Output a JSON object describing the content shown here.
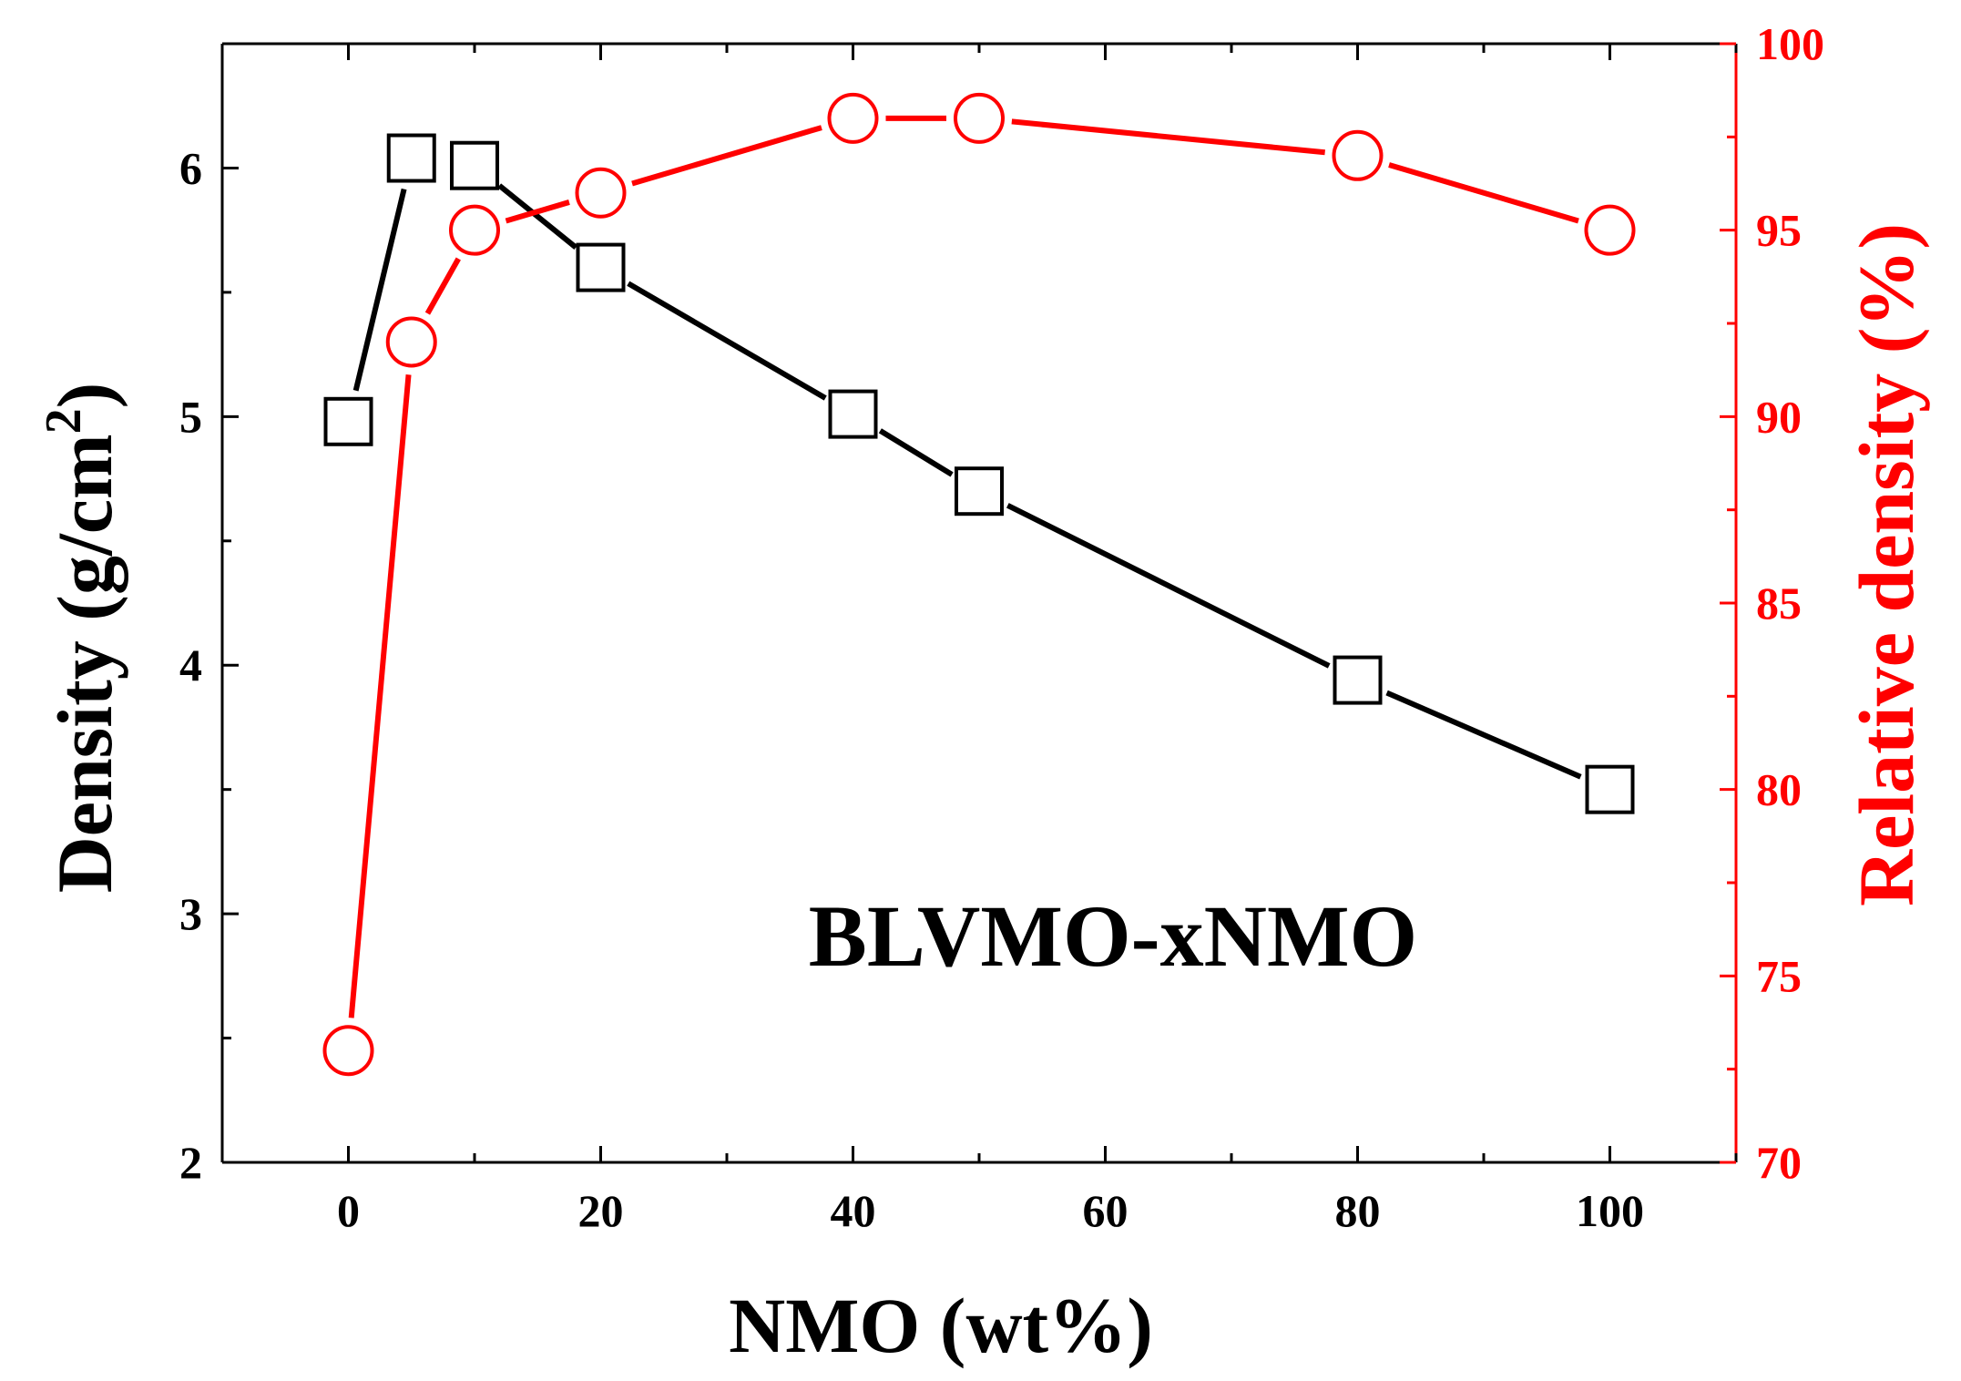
{
  "chart_data": {
    "type": "line",
    "annotation": "BLVMO-xNMO",
    "xlabel": "NMO (wt%)",
    "xlim": [
      -10,
      110
    ],
    "x_ticks": [
      0,
      20,
      40,
      60,
      80,
      100
    ],
    "x_tick_labels": [
      "0",
      "20",
      "40",
      "60",
      "80",
      "100"
    ],
    "y_left": {
      "label": "Density (g/cm",
      "label_sup": "2",
      "label_close": ")",
      "lim": [
        2,
        6.5
      ],
      "ticks": [
        2,
        3,
        4,
        5,
        6
      ],
      "tick_labels": [
        "2",
        "3",
        "4",
        "5",
        "6"
      ],
      "color": "#000000"
    },
    "y_right": {
      "label": "Relative density (%)",
      "lim": [
        70,
        100
      ],
      "ticks": [
        70,
        75,
        80,
        85,
        90,
        95,
        100
      ],
      "tick_labels": [
        "70",
        "75",
        "80",
        "85",
        "90",
        "95",
        "100"
      ],
      "color": "#ff0000"
    },
    "series": [
      {
        "name": "Density",
        "axis": "left",
        "marker": "square",
        "color": "#000000",
        "x": [
          0,
          5,
          10,
          20,
          40,
          50,
          80,
          100
        ],
        "values": [
          4.98,
          6.04,
          6.01,
          5.6,
          5.01,
          4.7,
          3.94,
          3.5
        ]
      },
      {
        "name": "Relative density",
        "axis": "right",
        "marker": "circle",
        "color": "#ff0000",
        "x": [
          0,
          5,
          10,
          20,
          40,
          50,
          80,
          100
        ],
        "values": [
          73,
          92,
          95,
          96,
          98,
          98,
          97,
          95
        ]
      }
    ],
    "grid": false
  }
}
